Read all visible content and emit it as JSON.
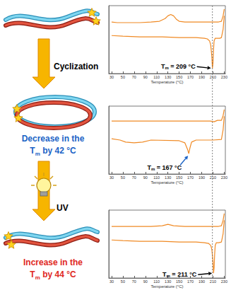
{
  "diagram": {
    "arrows": [
      {
        "label": "Cyclization"
      },
      {
        "label": "UV"
      }
    ],
    "states": [
      {
        "shape": "linear"
      },
      {
        "shape": "cyclic",
        "caption": {
          "line1": "Decrease in the",
          "base": "T",
          "sub": "m",
          "after": " by 42 °C"
        },
        "color": "#1b63c6"
      },
      {
        "shape": "linear",
        "caption": {
          "line1": "Increase in the",
          "base": "T",
          "sub": "m",
          "after": " by 44 °C"
        },
        "color": "#e0281e"
      }
    ]
  },
  "chart_data": [
    {
      "type": "line",
      "x_label": "Temperature (°C)",
      "xlim": [
        25,
        232
      ],
      "xticks": [
        30,
        50,
        70,
        90,
        110,
        130,
        150,
        170,
        190,
        210,
        230
      ],
      "ylim": [
        0,
        10
      ],
      "tick_labels": "x",
      "grid": false,
      "series": [
        {
          "color": "#f08a24",
          "x": [
            30,
            40,
            60,
            80,
            100,
            115,
            125,
            130,
            135,
            140,
            145,
            150,
            160,
            180,
            200,
            210,
            215,
            220,
            225,
            228,
            230
          ],
          "values": [
            7.6,
            7.5,
            7.5,
            7.5,
            7.6,
            7.7,
            8.1,
            8.5,
            8.7,
            8.5,
            8.0,
            7.7,
            7.6,
            7.6,
            7.6,
            7.6,
            7.6,
            7.6,
            7.7,
            8.5,
            9.5
          ]
        },
        {
          "color": "#f08a24",
          "x": [
            30,
            50,
            80,
            120,
            150,
            180,
            195,
            200,
            204,
            206,
            208,
            209,
            210,
            211,
            212,
            214,
            218,
            222,
            225,
            228,
            230
          ],
          "values": [
            5.6,
            5.5,
            5.4,
            5.4,
            5.3,
            5.3,
            5.2,
            5.1,
            4.8,
            4.2,
            2.5,
            0.8,
            1.5,
            3.5,
            4.8,
            5.2,
            5.2,
            5.2,
            5.3,
            6.5,
            8.5
          ]
        }
      ],
      "annotation": {
        "base": "T",
        "sub": "m",
        "after": " = 209 °C",
        "x": 209,
        "y": 0.8,
        "color": "#000000"
      }
    },
    {
      "type": "line",
      "x_label": "Temperature (°C)",
      "xlim": [
        25,
        232
      ],
      "xticks": [
        30,
        50,
        70,
        90,
        110,
        130,
        150,
        170,
        190,
        210,
        230
      ],
      "ylim": [
        0,
        10
      ],
      "tick_labels": "x",
      "grid": false,
      "series": [
        {
          "color": "#f08a24",
          "x": [
            30,
            60,
            100,
            140,
            180,
            205,
            212,
            218,
            225,
            228,
            230
          ],
          "values": [
            7.8,
            7.8,
            7.8,
            7.8,
            7.8,
            7.8,
            7.7,
            7.9,
            7.9,
            8.6,
            9.5
          ]
        },
        {
          "color": "#f08a24",
          "x": [
            30,
            45,
            55,
            70,
            85,
            100,
            150,
            160,
            165,
            167,
            169,
            172,
            180,
            210,
            225,
            228,
            230
          ],
          "values": [
            5.2,
            5.0,
            4.7,
            4.6,
            4.7,
            5.0,
            4.9,
            4.6,
            3.6,
            3.0,
            3.8,
            4.7,
            5.0,
            5.0,
            5.1,
            6.5,
            8.5
          ]
        }
      ],
      "annotation": {
        "base": "T",
        "sub": "m",
        "after": " = 167 °C",
        "x": 167,
        "y": 3.0,
        "color": "#1b63c6"
      }
    },
    {
      "type": "line",
      "x_label": "Temperature (°C)",
      "xlim": [
        25,
        232
      ],
      "xticks": [
        30,
        50,
        70,
        90,
        110,
        130,
        150,
        170,
        190,
        210,
        230
      ],
      "ylim": [
        0,
        10
      ],
      "tick_labels": "x",
      "grid": false,
      "series": [
        {
          "color": "#f08a24",
          "x": [
            30,
            60,
            100,
            120,
            130,
            140,
            160,
            200,
            220,
            225,
            228,
            230
          ],
          "values": [
            7.6,
            7.6,
            7.6,
            7.7,
            7.9,
            7.7,
            7.6,
            7.6,
            7.6,
            7.7,
            8.5,
            9.5
          ]
        },
        {
          "color": "#f08a24",
          "x": [
            30,
            50,
            80,
            120,
            150,
            180,
            195,
            202,
            206,
            208,
            210,
            211,
            212,
            213,
            214,
            216,
            220,
            225,
            228,
            230
          ],
          "values": [
            5.6,
            5.5,
            5.4,
            5.4,
            5.3,
            5.3,
            5.2,
            5.1,
            4.8,
            4.2,
            2.5,
            0.7,
            1.5,
            3.5,
            4.8,
            5.2,
            5.2,
            5.3,
            6.5,
            8.5
          ]
        }
      ],
      "annotation": {
        "base": "T",
        "sub": "m",
        "after": " = 211 °C",
        "x": 211,
        "y": 0.7,
        "color": "#000000"
      }
    }
  ]
}
